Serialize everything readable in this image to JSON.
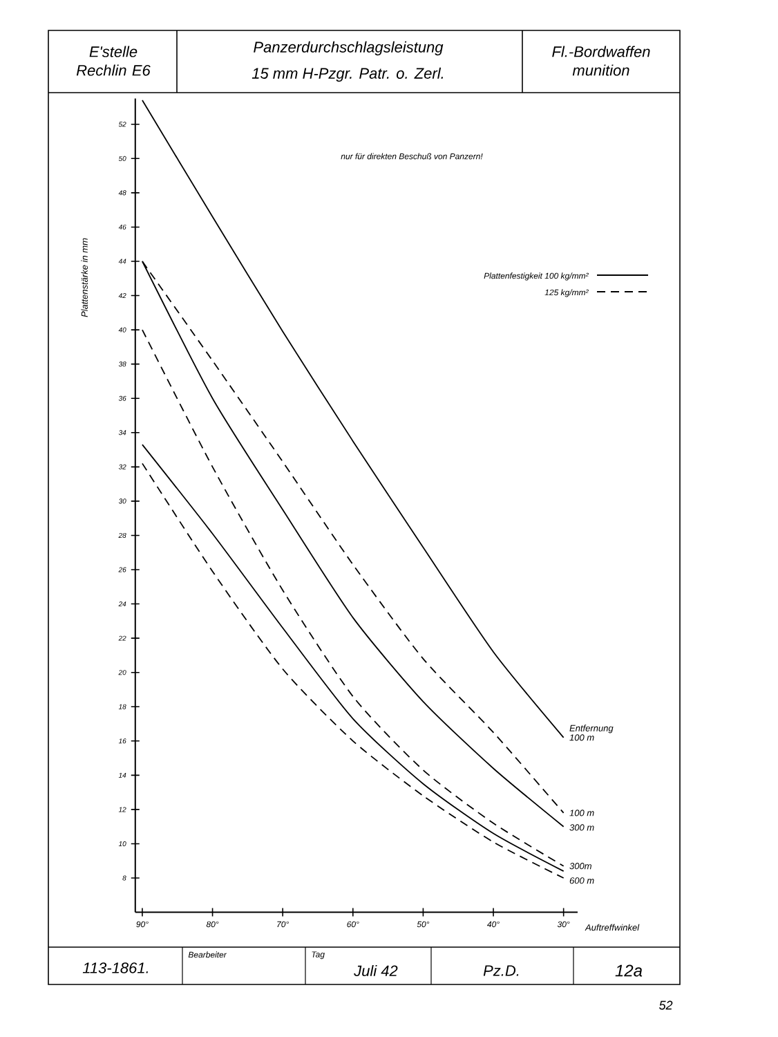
{
  "chart_data": {
    "type": "line",
    "title": "Panzerdurchschlagsleistung",
    "subtitle": "15 mm H-Pzgr. Patr. o. Zerl.",
    "xlabel": "Auftreffwinkel",
    "ylabel": "Plattenstärke in mm",
    "x": [
      90,
      80,
      70,
      60,
      50,
      40,
      30
    ],
    "series": [
      {
        "name": "100 m",
        "color": "#000000",
        "line_style": "solid",
        "values": [
          53.4,
          46.6,
          39.9,
          33.5,
          27.3,
          21.2,
          16.2
        ]
      },
      {
        "name": "100 m",
        "color": "#000000",
        "line_style": "dashed",
        "values": [
          44.0,
          38.2,
          32.3,
          26.3,
          20.8,
          16.5,
          11.8
        ]
      },
      {
        "name": "300 m",
        "color": "#000000",
        "line_style": "solid",
        "values": [
          44.0,
          36.0,
          29.5,
          23.2,
          18.3,
          14.4,
          11.0
        ]
      },
      {
        "name": "300m",
        "color": "#000000",
        "line_style": "dashed",
        "values": [
          40.0,
          32.0,
          24.8,
          18.6,
          14.3,
          11.2,
          8.7
        ]
      },
      {
        "name": "600 m",
        "color": "#000000",
        "line_style": "solid",
        "values": [
          33.3,
          28.1,
          22.6,
          17.3,
          13.5,
          10.6,
          8.4
        ]
      },
      {
        "color": "#000000",
        "line_style": "dashed",
        "values": [
          32.2,
          25.9,
          20.2,
          16.0,
          12.8,
          10.1,
          8.0
        ]
      }
    ],
    "xlim": [
      91,
      28
    ],
    "ylim": [
      6,
      53.5
    ],
    "xticks": [
      {
        "value": 90,
        "label": "90°"
      },
      {
        "value": 80,
        "label": "80°"
      },
      {
        "value": 70,
        "label": "70°"
      },
      {
        "value": 60,
        "label": "60°"
      },
      {
        "value": 50,
        "label": "50°"
      },
      {
        "value": 40,
        "label": "40°"
      },
      {
        "value": 30,
        "label": "30°"
      }
    ],
    "yticks": [
      8,
      10,
      12,
      14,
      16,
      18,
      20,
      22,
      24,
      26,
      28,
      30,
      32,
      34,
      36,
      38,
      40,
      42,
      44,
      46,
      48,
      50,
      52
    ],
    "grid": false,
    "marker": "none",
    "annotations": [
      "nur für direkten Beschuß von Panzern!",
      "Plattenfestigkeit 100 kg/mm²",
      "125 kg/mm²",
      {
        "text": "Entfernung",
        "x": 30,
        "y": 16.2
      },
      "E'stelle Rechlin E6",
      "Fl.-Bordwaffen munition",
      "113-1861.",
      "Bearbeiter",
      "Tag",
      "Juli 42",
      "Pz.D.",
      "12a",
      "52"
    ]
  }
}
